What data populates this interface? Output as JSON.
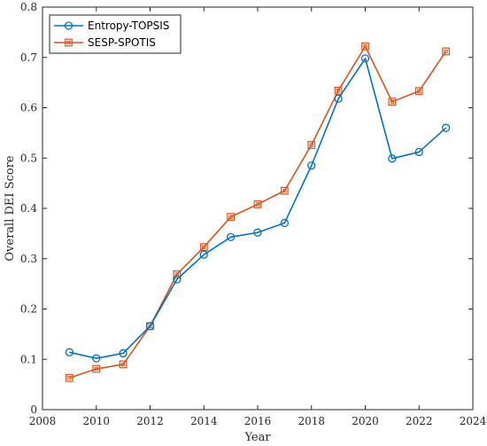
{
  "chart_data": {
    "type": "line",
    "title": "",
    "xlabel": "Year",
    "ylabel": "Overall DEI Score",
    "xlim": [
      2008,
      2024
    ],
    "ylim": [
      0,
      0.8
    ],
    "xticks": [
      2008,
      2010,
      2012,
      2014,
      2016,
      2018,
      2020,
      2022,
      2024
    ],
    "yticks": [
      0,
      0.1,
      0.2,
      0.3,
      0.4,
      0.5,
      0.6,
      0.7,
      0.8
    ],
    "x": [
      2009,
      2010,
      2011,
      2012,
      2013,
      2014,
      2015,
      2016,
      2017,
      2018,
      2019,
      2020,
      2021,
      2022,
      2023
    ],
    "series": [
      {
        "name": "Entropy-TOPSIS",
        "color": "#0072BD",
        "marker": "circle",
        "values": [
          0.114,
          0.102,
          0.112,
          0.166,
          0.259,
          0.308,
          0.343,
          0.352,
          0.371,
          0.485,
          0.618,
          0.698,
          0.499,
          0.512,
          0.56
        ]
      },
      {
        "name": "SESP-SPOTIS",
        "color": "#D95319",
        "marker": "square",
        "values": [
          0.063,
          0.081,
          0.09,
          0.166,
          0.269,
          0.323,
          0.383,
          0.408,
          0.435,
          0.526,
          0.634,
          0.722,
          0.612,
          0.633,
          0.712
        ]
      }
    ],
    "grid": false,
    "legend_position": "top-left",
    "box": true
  }
}
